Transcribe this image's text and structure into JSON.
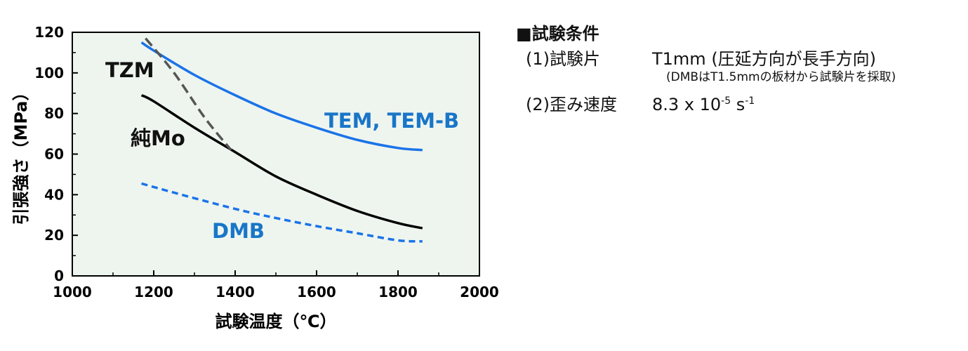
{
  "chart_data": {
    "type": "line",
    "xlabel": "試験温度（℃）",
    "ylabel": "引張強さ（MPa）",
    "xlim": [
      1000,
      2000
    ],
    "ylim": [
      0,
      120
    ],
    "x_ticks": [
      1000,
      1200,
      1400,
      1600,
      1800,
      2000
    ],
    "x_tick_labels": [
      "1000",
      "1200",
      "1400",
      "1600",
      "1800",
      "2000"
    ],
    "y_ticks": [
      0,
      20,
      40,
      60,
      80,
      100,
      120
    ],
    "y_tick_labels": [
      "0",
      "20",
      "40",
      "60",
      "80",
      "100",
      "120"
    ],
    "background": "#eef5ef",
    "grid": false,
    "series": [
      {
        "name": "TEM, TEM-B",
        "color": "#1a73e8",
        "style": "solid",
        "points": [
          [
            1170,
            115
          ],
          [
            1200,
            111
          ],
          [
            1300,
            99
          ],
          [
            1400,
            89
          ],
          [
            1500,
            80
          ],
          [
            1600,
            73
          ],
          [
            1700,
            67
          ],
          [
            1800,
            63
          ],
          [
            1860,
            62
          ]
        ]
      },
      {
        "name": "純Mo",
        "color": "#000000",
        "style": "solid",
        "points": [
          [
            1170,
            89
          ],
          [
            1200,
            86
          ],
          [
            1300,
            73
          ],
          [
            1400,
            61
          ],
          [
            1500,
            49
          ],
          [
            1600,
            40
          ],
          [
            1700,
            32
          ],
          [
            1800,
            26
          ],
          [
            1860,
            23.5
          ]
        ]
      },
      {
        "name": "TZM",
        "color": "#555555",
        "style": "dashed",
        "points": [
          [
            1180,
            117
          ],
          [
            1250,
            100
          ],
          [
            1325,
            78
          ],
          [
            1390,
            62
          ]
        ]
      },
      {
        "name": "DMB",
        "color": "#1a73e8",
        "style": "dashed",
        "points": [
          [
            1170,
            45.5
          ],
          [
            1250,
            41
          ],
          [
            1400,
            33
          ],
          [
            1500,
            28.5
          ],
          [
            1600,
            24.5
          ],
          [
            1700,
            21
          ],
          [
            1800,
            17.5
          ],
          [
            1860,
            17
          ]
        ]
      }
    ]
  },
  "conditions": {
    "heading": "■試験条件",
    "row1_label": "(1)試験片",
    "row1_value": "T1mm (圧延方向が長手方向)",
    "row1_note": "(DMBはT1.5mmの板材から試験片を採取)",
    "row2_label": "(2)歪み速度",
    "row2_value_main": "8.3 x 10",
    "row2_exp1": "-5",
    "row2_unit": " s",
    "row2_exp2": "-1"
  }
}
